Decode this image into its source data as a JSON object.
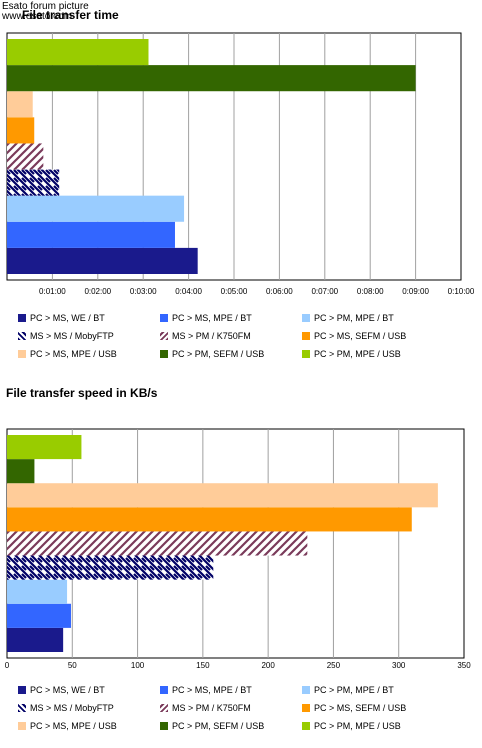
{
  "watermark": {
    "line1": "Esato forum picture",
    "line2": "www.esato.com"
  },
  "legend_colors": [
    "#1a1a8c",
    "#3366ff",
    "#99ccff",
    "#000066",
    "#7a3a5a",
    "#ff9900",
    "#ffcc99",
    "#336600",
    "#99cc00"
  ],
  "chart_data": [
    {
      "type": "bar",
      "orientation": "horizontal",
      "title": "File transfer time",
      "xunit": "time h:mm:ss",
      "xlim_seconds": [
        0,
        600
      ],
      "xticks": [
        "0:01:00",
        "0:02:00",
        "0:03:00",
        "0:04:00",
        "0:05:00",
        "0:06:00",
        "0:07:00",
        "0:08:00",
        "0:09:00",
        "0:10:00"
      ],
      "legend": [
        "PC > MS, WE / BT",
        "PC > MS, MPE / BT",
        "PC > PM, MPE / BT",
        "MS > MS / MobyFTP",
        "MS > PM / K750FM",
        "PC > MS, SEFM / USB",
        "PC > MS, MPE / USB",
        "PC > PM, SEFM / USB",
        "PC > PM, MPE / USB"
      ],
      "series": [
        {
          "name": "PC > MS, WE / BT",
          "value": "0:04:12"
        },
        {
          "name": "PC > MS, MPE / BT",
          "value": "0:03:42"
        },
        {
          "name": "PC > PM, MPE / BT",
          "value": "0:03:54"
        },
        {
          "name": "MS > MS / MobyFTP",
          "value": "0:01:09"
        },
        {
          "name": "MS > PM / K750FM",
          "value": "0:00:48"
        },
        {
          "name": "PC > MS, SEFM / USB",
          "value": "0:00:36"
        },
        {
          "name": "PC > MS, MPE / USB",
          "value": "0:00:34"
        },
        {
          "name": "PC > PM, SEFM / USB",
          "value": "0:09:00"
        },
        {
          "name": "PC > PM, MPE / USB",
          "value": "0:03:07"
        }
      ]
    },
    {
      "type": "bar",
      "orientation": "horizontal",
      "title": "File transfer speed in KB/s",
      "xlim": [
        0,
        350
      ],
      "xticks": [
        0,
        50,
        100,
        150,
        200,
        250,
        300,
        350
      ],
      "legend": [
        "PC > MS, WE / BT",
        "PC > MS, MPE / BT",
        "PC > PM, MPE / BT",
        "MS > MS / MobyFTP",
        "MS > PM / K750FM",
        "PC > MS, SEFM / USB",
        "PC > MS, MPE / USB",
        "PC > PM, SEFM / USB",
        "PC > PM, MPE / USB"
      ],
      "series": [
        {
          "name": "PC > MS, WE / BT",
          "value": 43
        },
        {
          "name": "PC > MS, MPE / BT",
          "value": 49
        },
        {
          "name": "PC > PM, MPE / BT",
          "value": 46
        },
        {
          "name": "MS > MS / MobyFTP",
          "value": 158
        },
        {
          "name": "MS > PM / K750FM",
          "value": 230
        },
        {
          "name": "PC > MS, SEFM / USB",
          "value": 310
        },
        {
          "name": "PC > MS, MPE / USB",
          "value": 330
        },
        {
          "name": "PC > PM, SEFM / USB",
          "value": 21
        },
        {
          "name": "PC > PM, MPE / USB",
          "value": 57
        }
      ]
    }
  ]
}
